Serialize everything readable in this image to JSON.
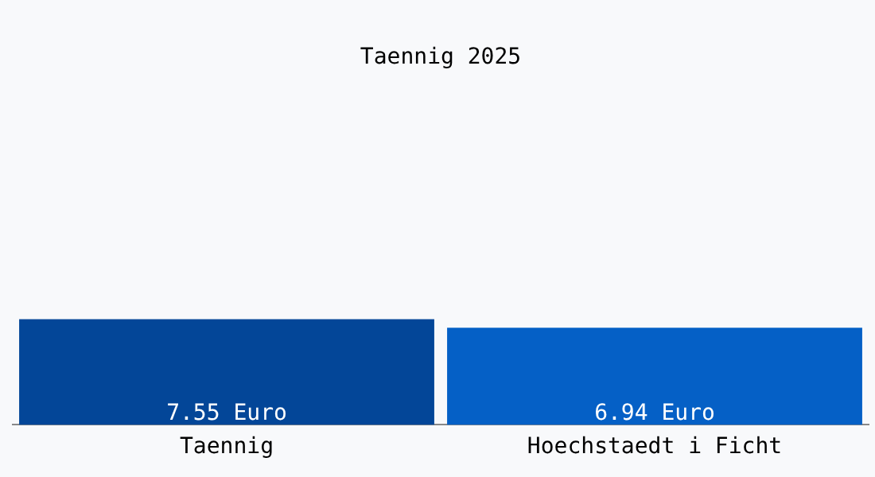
{
  "chart_data": {
    "type": "bar",
    "title": "Taennig 2025",
    "categories": [
      "Taennig",
      "Hoechstaedt i Ficht"
    ],
    "values": [
      7.55,
      6.94
    ],
    "colors": [
      "#034698",
      "#0560c6"
    ],
    "value_labels": [
      "7.55 Euro",
      "6.94 Euro"
    ],
    "grid": false,
    "legend": false,
    "tick_labels": "x"
  }
}
